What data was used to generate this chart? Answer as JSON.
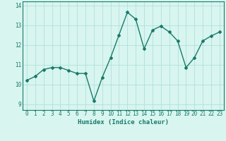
{
  "x": [
    0,
    1,
    2,
    3,
    4,
    5,
    6,
    7,
    8,
    9,
    10,
    11,
    12,
    13,
    14,
    15,
    16,
    17,
    18,
    19,
    20,
    21,
    22,
    23
  ],
  "y": [
    10.2,
    10.4,
    10.75,
    10.85,
    10.85,
    10.7,
    10.55,
    10.55,
    9.15,
    10.35,
    11.35,
    12.5,
    13.65,
    13.3,
    11.8,
    12.75,
    12.95,
    12.65,
    12.2,
    10.85,
    11.35,
    12.2,
    12.45,
    12.65
  ],
  "line_color": "#1a7a6a",
  "marker": "D",
  "marker_size": 2,
  "line_width": 1.0,
  "bg_color": "#d8f5f0",
  "grid_color": "#aaddd5",
  "xlabel": "Humidex (Indice chaleur)",
  "xlabel_fontsize": 6.5,
  "tick_fontsize": 5.5,
  "ylabel_ticks": [
    9,
    10,
    11,
    12,
    13,
    14
  ],
  "xlim": [
    -0.5,
    23.5
  ],
  "ylim": [
    8.7,
    14.2
  ]
}
